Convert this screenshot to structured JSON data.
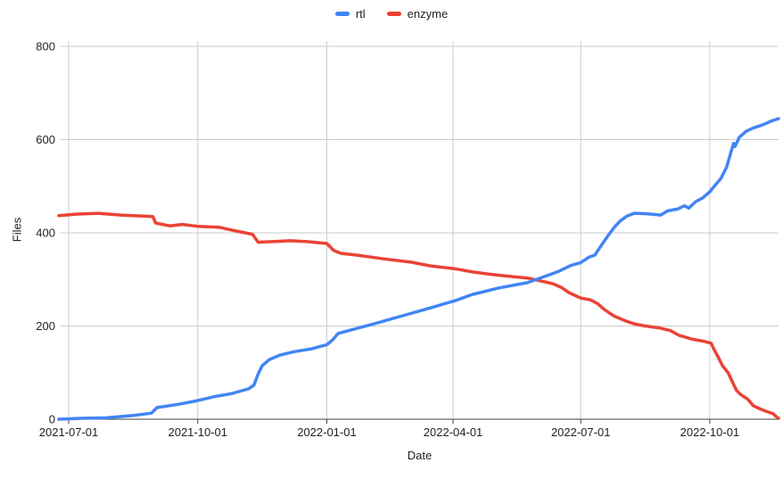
{
  "chart_data": {
    "type": "line",
    "title": "",
    "grid": true,
    "legend_position": "top-center",
    "background": "#ffffff",
    "gridline_color": "#cccccc",
    "axis_line_color": "#424242",
    "x_axis": {
      "title": "Date",
      "type": "date",
      "min": "2021-06-24",
      "max": "2022-11-19",
      "ticks": [
        "2021-07-01",
        "2021-10-01",
        "2022-01-01",
        "2022-04-01",
        "2022-07-01",
        "2022-10-01"
      ]
    },
    "y_axis": {
      "title": "Files",
      "min": 0,
      "max": 800,
      "ticks": [
        0,
        200,
        400,
        600,
        800
      ]
    },
    "series": [
      {
        "name": "rtl",
        "color": "#4285f4",
        "points": [
          [
            "2021-06-24",
            0
          ],
          [
            "2021-07-09",
            2
          ],
          [
            "2021-07-28",
            3
          ],
          [
            "2021-08-16",
            8
          ],
          [
            "2021-08-29",
            13
          ],
          [
            "2021-09-02",
            25
          ],
          [
            "2021-09-17",
            32
          ],
          [
            "2021-10-01",
            40
          ],
          [
            "2021-10-12",
            48
          ],
          [
            "2021-10-25",
            55
          ],
          [
            "2021-11-06",
            65
          ],
          [
            "2021-11-10",
            73
          ],
          [
            "2021-11-13",
            97
          ],
          [
            "2021-11-16",
            115
          ],
          [
            "2021-11-21",
            128
          ],
          [
            "2021-11-29",
            138
          ],
          [
            "2021-12-09",
            145
          ],
          [
            "2021-12-21",
            151
          ],
          [
            "2022-01-01",
            160
          ],
          [
            "2022-01-05",
            170
          ],
          [
            "2022-01-09",
            184
          ],
          [
            "2022-01-20",
            193
          ],
          [
            "2022-02-05",
            206
          ],
          [
            "2022-02-24",
            222
          ],
          [
            "2022-03-15",
            238
          ],
          [
            "2022-04-02",
            254
          ],
          [
            "2022-04-15",
            268
          ],
          [
            "2022-05-04",
            282
          ],
          [
            "2022-05-24",
            293
          ],
          [
            "2022-06-05",
            306
          ],
          [
            "2022-06-15",
            317
          ],
          [
            "2022-06-24",
            330
          ],
          [
            "2022-07-01",
            336
          ],
          [
            "2022-07-07",
            348
          ],
          [
            "2022-07-11",
            352
          ],
          [
            "2022-07-15",
            370
          ],
          [
            "2022-07-20",
            392
          ],
          [
            "2022-07-25",
            412
          ],
          [
            "2022-07-29",
            425
          ],
          [
            "2022-08-03",
            436
          ],
          [
            "2022-08-08",
            442
          ],
          [
            "2022-08-17",
            441
          ],
          [
            "2022-08-27",
            438
          ],
          [
            "2022-09-01",
            447
          ],
          [
            "2022-09-08",
            451
          ],
          [
            "2022-09-13",
            458
          ],
          [
            "2022-09-16",
            453
          ],
          [
            "2022-09-21",
            467
          ],
          [
            "2022-09-26",
            475
          ],
          [
            "2022-10-01",
            488
          ],
          [
            "2022-10-04",
            499
          ],
          [
            "2022-10-09",
            517
          ],
          [
            "2022-10-13",
            541
          ],
          [
            "2022-10-16",
            572
          ],
          [
            "2022-10-18",
            592
          ],
          [
            "2022-10-19",
            585
          ],
          [
            "2022-10-22",
            605
          ],
          [
            "2022-10-27",
            618
          ],
          [
            "2022-11-01",
            625
          ],
          [
            "2022-11-08",
            632
          ],
          [
            "2022-11-14",
            640
          ],
          [
            "2022-11-19",
            645
          ]
        ]
      },
      {
        "name": "enzyme",
        "color": "#ea4335",
        "points": [
          [
            "2021-06-24",
            437
          ],
          [
            "2021-07-06",
            440
          ],
          [
            "2021-07-22",
            442
          ],
          [
            "2021-08-07",
            438
          ],
          [
            "2021-08-23",
            436
          ],
          [
            "2021-08-30",
            435
          ],
          [
            "2021-09-01",
            421
          ],
          [
            "2021-09-11",
            415
          ],
          [
            "2021-09-20",
            418
          ],
          [
            "2021-10-01",
            414
          ],
          [
            "2021-10-16",
            412
          ],
          [
            "2021-10-28",
            404
          ],
          [
            "2021-11-09",
            397
          ],
          [
            "2021-11-13",
            380
          ],
          [
            "2021-11-23",
            381
          ],
          [
            "2021-12-06",
            383
          ],
          [
            "2021-12-18",
            381
          ],
          [
            "2022-01-01",
            377
          ],
          [
            "2022-01-06",
            362
          ],
          [
            "2022-01-11",
            356
          ],
          [
            "2022-01-23",
            352
          ],
          [
            "2022-02-11",
            344
          ],
          [
            "2022-03-02",
            337
          ],
          [
            "2022-03-16",
            329
          ],
          [
            "2022-04-02",
            323
          ],
          [
            "2022-04-15",
            316
          ],
          [
            "2022-04-25",
            312
          ],
          [
            "2022-05-07",
            308
          ],
          [
            "2022-05-24",
            303
          ],
          [
            "2022-06-02",
            297
          ],
          [
            "2022-06-11",
            291
          ],
          [
            "2022-06-17",
            283
          ],
          [
            "2022-06-23",
            271
          ],
          [
            "2022-07-01",
            260
          ],
          [
            "2022-07-08",
            256
          ],
          [
            "2022-07-13",
            248
          ],
          [
            "2022-07-18",
            235
          ],
          [
            "2022-07-25",
            221
          ],
          [
            "2022-08-02",
            211
          ],
          [
            "2022-08-09",
            204
          ],
          [
            "2022-08-16",
            200
          ],
          [
            "2022-08-26",
            196
          ],
          [
            "2022-09-03",
            190
          ],
          [
            "2022-09-09",
            180
          ],
          [
            "2022-09-18",
            172
          ],
          [
            "2022-09-27",
            167
          ],
          [
            "2022-10-02",
            163
          ],
          [
            "2022-10-04",
            150
          ],
          [
            "2022-10-07",
            133
          ],
          [
            "2022-10-10",
            115
          ],
          [
            "2022-10-14",
            100
          ],
          [
            "2022-10-17",
            81
          ],
          [
            "2022-10-20",
            62
          ],
          [
            "2022-10-23",
            53
          ],
          [
            "2022-10-28",
            43
          ],
          [
            "2022-11-01",
            29
          ],
          [
            "2022-11-06",
            22
          ],
          [
            "2022-11-11",
            16
          ],
          [
            "2022-11-15",
            12
          ],
          [
            "2022-11-18",
            4
          ],
          [
            "2022-11-19",
            2
          ]
        ]
      }
    ]
  }
}
